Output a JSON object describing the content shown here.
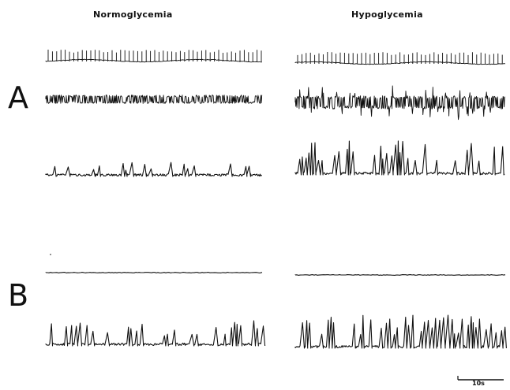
{
  "columns": {
    "left": "Normoglycemia",
    "right": "Hypoglycemia"
  },
  "panels": {
    "a": "A",
    "b": "B"
  },
  "scale_bar": {
    "label": "10s"
  },
  "traces": [
    {
      "panel": "A",
      "condition": "Normoglycemia",
      "kind": "regular-spike-train"
    },
    {
      "panel": "A",
      "condition": "Normoglycemia",
      "kind": "dense-burst-band"
    },
    {
      "panel": "A",
      "condition": "Normoglycemia",
      "kind": "sparse-peaks"
    },
    {
      "panel": "A",
      "condition": "Hypoglycemia",
      "kind": "regular-spike-train"
    },
    {
      "panel": "A",
      "condition": "Hypoglycemia",
      "kind": "dense-burst-band"
    },
    {
      "panel": "A",
      "condition": "Hypoglycemia",
      "kind": "frequent-peaks"
    },
    {
      "panel": "B",
      "condition": "Normoglycemia",
      "kind": "flat-line"
    },
    {
      "panel": "B",
      "condition": "Normoglycemia",
      "kind": "periodic-peaks"
    },
    {
      "panel": "B",
      "condition": "Hypoglycemia",
      "kind": "flat-line"
    },
    {
      "panel": "B",
      "condition": "Hypoglycemia",
      "kind": "dense-periodic-peaks"
    }
  ],
  "colors": {
    "ink": "#111111",
    "background": "#ffffff"
  }
}
